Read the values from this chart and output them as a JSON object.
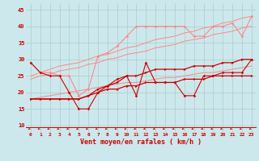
{
  "x": [
    0,
    1,
    2,
    3,
    4,
    5,
    6,
    7,
    8,
    9,
    10,
    11,
    12,
    13,
    14,
    15,
    16,
    17,
    18,
    19,
    20,
    21,
    22,
    23
  ],
  "line_upper_jagged": [
    29,
    26,
    26,
    25,
    25,
    19,
    21,
    31,
    32,
    34,
    37,
    40,
    40,
    40,
    40,
    40,
    40,
    37,
    37,
    40,
    40,
    41,
    37,
    43
  ],
  "line_lower_jagged": [
    29,
    26,
    25,
    25,
    20,
    15,
    15,
    20,
    22,
    24,
    25,
    19,
    29,
    23,
    23,
    23,
    19,
    19,
    25,
    25,
    26,
    26,
    26,
    30
  ],
  "line_mean1": [
    18,
    18,
    18,
    18,
    18,
    18,
    19,
    20,
    21,
    21,
    22,
    22,
    23,
    23,
    23,
    23,
    24,
    24,
    24,
    25,
    25,
    25,
    25,
    25
  ],
  "line_mean2": [
    18,
    18,
    18,
    18,
    18,
    18,
    19,
    21,
    22,
    23,
    25,
    25,
    26,
    27,
    27,
    27,
    27,
    28,
    28,
    28,
    29,
    29,
    30,
    30
  ],
  "trend_low": [
    18,
    18.5,
    19,
    19.5,
    20,
    20.5,
    21,
    21.5,
    22,
    22.5,
    23,
    23,
    23.5,
    24,
    24.5,
    24.5,
    25,
    25.5,
    26,
    26,
    26.5,
    27,
    27.5,
    28
  ],
  "trend_mid": [
    24,
    25,
    25.5,
    26.5,
    27,
    27.5,
    28.5,
    29,
    30,
    30.5,
    31.5,
    32,
    32.5,
    33.5,
    34,
    34.5,
    35.5,
    36,
    36.5,
    37.5,
    38,
    38.5,
    39.5,
    40
  ],
  "trend_high": [
    25,
    26,
    27,
    28,
    28.5,
    29,
    30,
    31,
    31.5,
    32.5,
    33.5,
    34,
    35,
    36,
    36.5,
    37,
    38,
    38.5,
    39.5,
    40,
    41,
    41.5,
    42.5,
    43
  ],
  "background_color": "#cce8ec",
  "grid_color": "#aacccc",
  "color_dark": "#cc0000",
  "color_light": "#ff8888",
  "xlabel": "Vent moyen/en rafales ( km/h )",
  "ylim": [
    8,
    47
  ],
  "xlim": [
    -0.5,
    23.5
  ],
  "yticks": [
    10,
    15,
    20,
    25,
    30,
    35,
    40,
    45
  ]
}
